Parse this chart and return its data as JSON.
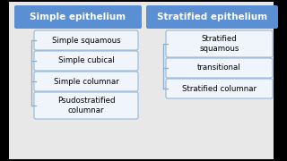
{
  "background_color": "#e8e8e8",
  "outer_bg": "#000000",
  "header_bg": "#5b8fd4",
  "header_text_color": "white",
  "box_bg": "#f0f4fb",
  "box_edge_color": "#8ab0d8",
  "box_text_color": "black",
  "line_color": "#8ab0d8",
  "left_header": "Simple epithelium",
  "right_header": "Stratified epithelium",
  "left_items": [
    "Simple squamous",
    "Simple cubical",
    "Simple columnar",
    "Psudostratified\ncolumnar"
  ],
  "right_items": [
    "Stratified\nsquamous",
    "transitional",
    "Stratified columnar"
  ],
  "header_fontsize": 7.5,
  "item_fontsize": 6.2
}
